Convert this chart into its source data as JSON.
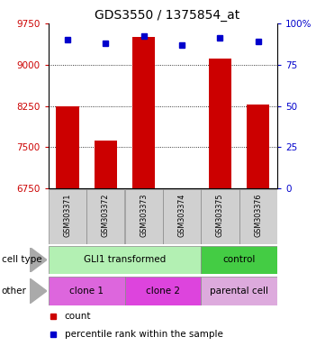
{
  "title": "GDS3550 / 1375854_at",
  "samples": [
    "GSM303371",
    "GSM303372",
    "GSM303373",
    "GSM303374",
    "GSM303375",
    "GSM303376"
  ],
  "counts": [
    8250,
    7620,
    9500,
    6690,
    9100,
    8270
  ],
  "percentile_ranks": [
    90,
    88,
    92,
    87,
    91,
    89
  ],
  "ylim_left": [
    6750,
    9750
  ],
  "yticks_left": [
    6750,
    7500,
    8250,
    9000,
    9750
  ],
  "ylim_right": [
    0,
    100
  ],
  "yticks_right": [
    0,
    25,
    50,
    75,
    100
  ],
  "bar_color": "#cc0000",
  "dot_color": "#0000cc",
  "cell_type_labels": [
    {
      "text": "GLI1 transformed",
      "start": 0,
      "end": 3,
      "color": "#b3f0b3"
    },
    {
      "text": "control",
      "start": 4,
      "end": 5,
      "color": "#44cc44"
    }
  ],
  "other_labels": [
    {
      "text": "clone 1",
      "start": 0,
      "end": 1,
      "color": "#dd66dd"
    },
    {
      "text": "clone 2",
      "start": 2,
      "end": 3,
      "color": "#dd44dd"
    },
    {
      "text": "parental cell",
      "start": 4,
      "end": 5,
      "color": "#ddaadd"
    }
  ],
  "left_label_color": "#cc0000",
  "right_label_color": "#0000cc",
  "bg_color": "#ffffff",
  "label_row1": "cell type",
  "label_row2": "other",
  "legend_count": "count",
  "legend_pct": "percentile rank within the sample",
  "sample_bg": "#d0d0d0"
}
